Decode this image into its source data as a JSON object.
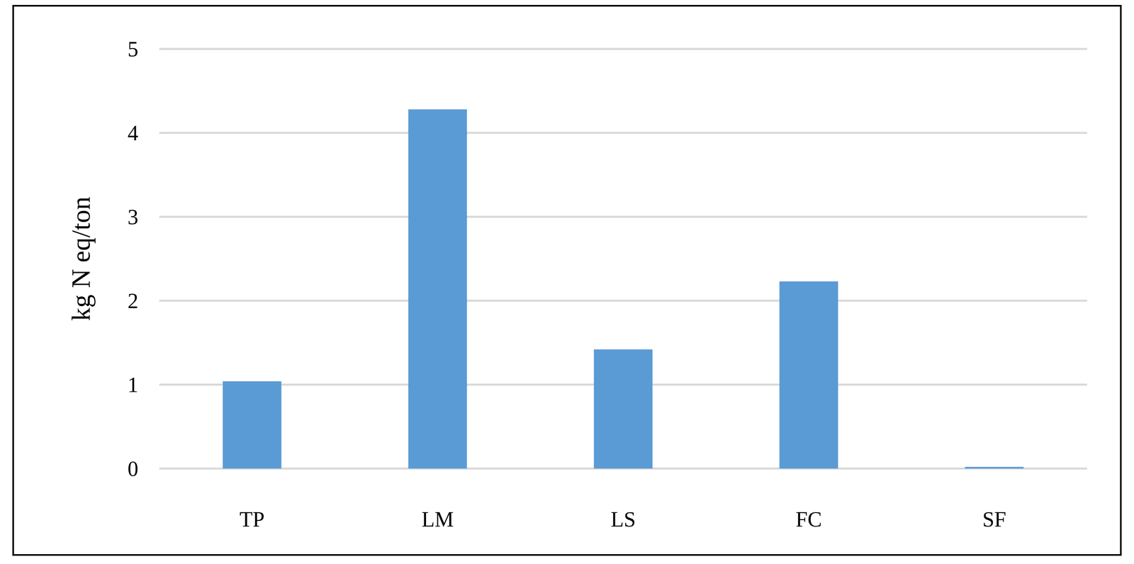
{
  "chart_data": {
    "type": "bar",
    "y_label": "kg N eq/ton",
    "categories": [
      "TP",
      "LM",
      "LS",
      "FC",
      "SF"
    ],
    "values": [
      1.04,
      4.28,
      1.42,
      2.23,
      0.02
    ],
    "color": "#5b9bd5",
    "ylim": [
      0,
      5
    ],
    "yticks": [
      0,
      1,
      2,
      3,
      4,
      5
    ],
    "grid": true
  }
}
